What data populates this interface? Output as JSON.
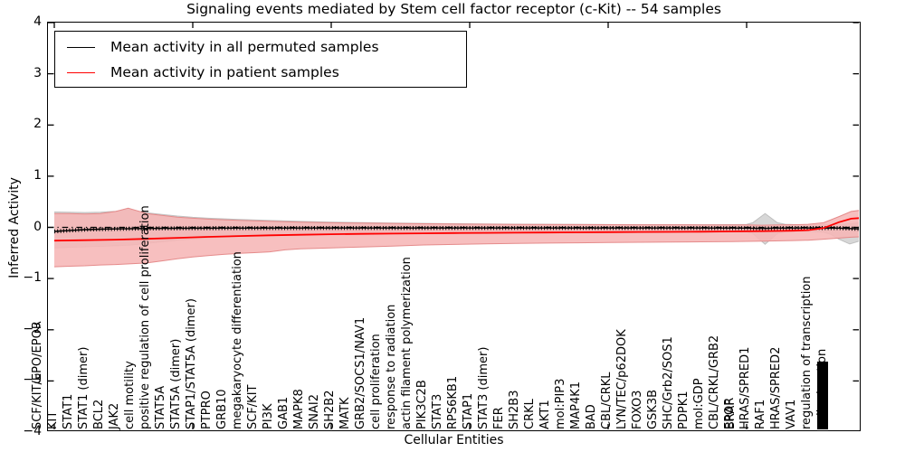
{
  "chart_data": {
    "type": "line",
    "title": "Signaling events mediated by Stem cell factor receptor (c-Kit) -- 54 samples",
    "xlabel": "Cellular Entities",
    "ylabel": "Inferred Activity",
    "ylim": [
      -4,
      4
    ],
    "yticks": [
      "-4",
      "-3",
      "-2",
      "-1",
      "0",
      "1",
      "2",
      "3",
      "4"
    ],
    "grid": false,
    "legend_position": "upper left",
    "legend": [
      {
        "label": "Mean activity in all permuted samples",
        "color": "#000000"
      },
      {
        "label": "Mean activity in patient samples",
        "color": "#ff0000"
      }
    ],
    "x_categories": [
      "SCF/KIT/EPO/EPOR",
      "KIT",
      "STAT1",
      "STAT1 (dimer)",
      "BCL2",
      "JAK2",
      "cell motility",
      "positive regulation of cell proliferation",
      "STAT5A",
      "STAT5A (dimer)",
      "STAP1/STAT5A (dimer)",
      "PTPRO",
      "GRB10",
      "megakaryocyte differentiation",
      "SCF/KIT",
      "PI3K",
      "GAB1",
      "MAPK8",
      "SNAI2",
      "SH2B2",
      "MATK",
      "GRB2/SOCS1/NAV1",
      "cell proliferation",
      "response to radiation",
      "actin filament polymerization",
      "PIK3C2B",
      "STAT3",
      "RPS6KB1",
      "STAP1",
      "STAT3 (dimer)",
      "FER",
      "SH2B3",
      "CRKL",
      "AKT1",
      "mol:PIP3",
      "MAP4K1",
      "BAD",
      "CBL/CRKL",
      "LYN/TEC/p62DOK",
      "FOXO3",
      "GSK3B",
      "SHC/Grb2/SOS1",
      "PDPK1",
      "mol:GDP",
      "CBL/CRKL/GRB2",
      "EPOR",
      "HRAS/SPRED1",
      "RAF1",
      "HRAS/SPRED2",
      "VAV1",
      "regulation of transcription",
      "cell migration"
    ],
    "x_overlapping_extra_labels": [
      {
        "index": 45,
        "label": "BRAF"
      }
    ],
    "x_label_blob": {
      "index": 50,
      "note": "dense cluster of overlapping entity labels"
    },
    "zero_line": {
      "value": 0,
      "style": "dashdot",
      "color": "#000000"
    },
    "series": [
      {
        "name": "Mean activity in all permuted samples",
        "color": "#000000",
        "style": "solid-with-tick-markers",
        "points": [
          [
            0,
            -0.08
          ],
          [
            1,
            -0.06
          ],
          [
            2,
            -0.045
          ],
          [
            3,
            -0.035
          ],
          [
            4,
            -0.03
          ],
          [
            6,
            -0.022
          ],
          [
            8,
            -0.018
          ],
          [
            12,
            -0.015
          ],
          [
            20,
            -0.013
          ],
          [
            30,
            -0.013
          ],
          [
            40,
            -0.012
          ],
          [
            45,
            -0.015
          ],
          [
            46,
            -0.022
          ],
          [
            47,
            -0.015
          ],
          [
            49,
            -0.012
          ],
          [
            51,
            -0.015
          ],
          [
            52.3,
            -0.03
          ]
        ]
      },
      {
        "name": "Mean activity in patient samples",
        "color": "#ff0000",
        "style": "solid",
        "points": [
          [
            0,
            -0.26
          ],
          [
            2,
            -0.25
          ],
          [
            4,
            -0.24
          ],
          [
            6,
            -0.225
          ],
          [
            8,
            -0.205
          ],
          [
            10,
            -0.185
          ],
          [
            12,
            -0.17
          ],
          [
            14,
            -0.155
          ],
          [
            16,
            -0.145
          ],
          [
            18,
            -0.135
          ],
          [
            20,
            -0.128
          ],
          [
            22,
            -0.122
          ],
          [
            24,
            -0.117
          ],
          [
            26,
            -0.112
          ],
          [
            28,
            -0.108
          ],
          [
            30,
            -0.104
          ],
          [
            32,
            -0.1
          ],
          [
            34,
            -0.098
          ],
          [
            36,
            -0.094
          ],
          [
            38,
            -0.09
          ],
          [
            40,
            -0.088
          ],
          [
            42,
            -0.084
          ],
          [
            44,
            -0.08
          ],
          [
            46,
            -0.075
          ],
          [
            47,
            -0.07
          ],
          [
            48,
            -0.065
          ],
          [
            49,
            -0.055
          ],
          [
            50,
            -0.015
          ],
          [
            51,
            0.1
          ],
          [
            51.8,
            0.17
          ],
          [
            52.3,
            0.18
          ]
        ]
      }
    ],
    "bands": [
      {
        "name": "permuted samples band",
        "fill": "#d7d7d7",
        "edge": "#bfbfbf",
        "upper": [
          [
            0,
            0.3
          ],
          [
            2,
            0.29
          ],
          [
            3,
            0.295
          ],
          [
            4,
            0.315
          ],
          [
            4.8,
            0.35
          ],
          [
            5.5,
            0.31
          ],
          [
            6,
            0.285
          ],
          [
            7,
            0.253
          ],
          [
            8,
            0.22
          ],
          [
            9,
            0.196
          ],
          [
            10,
            0.178
          ],
          [
            12,
            0.154
          ],
          [
            14,
            0.134
          ],
          [
            16,
            0.116
          ],
          [
            18,
            0.102
          ],
          [
            20,
            0.092
          ],
          [
            22,
            0.084
          ],
          [
            24,
            0.077
          ],
          [
            26,
            0.071
          ],
          [
            28,
            0.066
          ],
          [
            30,
            0.062
          ],
          [
            34,
            0.057
          ],
          [
            38,
            0.053
          ],
          [
            42,
            0.052
          ],
          [
            44,
            0.053
          ],
          [
            45,
            0.058
          ],
          [
            45.4,
            0.09
          ],
          [
            46.2,
            0.27
          ],
          [
            47,
            0.09
          ],
          [
            47.5,
            0.06
          ],
          [
            48,
            0.055
          ],
          [
            49,
            0.052
          ],
          [
            50,
            0.05
          ],
          [
            51,
            0.055
          ],
          [
            51.8,
            0.07
          ],
          [
            52.3,
            0.09
          ]
        ],
        "lower": [
          [
            0,
            -0.4
          ],
          [
            2,
            -0.38
          ],
          [
            4,
            -0.36
          ],
          [
            5,
            -0.345
          ],
          [
            6,
            -0.315
          ],
          [
            7,
            -0.283
          ],
          [
            8,
            -0.252
          ],
          [
            9,
            -0.228
          ],
          [
            10,
            -0.208
          ],
          [
            12,
            -0.178
          ],
          [
            14,
            -0.156
          ],
          [
            16,
            -0.138
          ],
          [
            18,
            -0.126
          ],
          [
            20,
            -0.117
          ],
          [
            24,
            -0.106
          ],
          [
            28,
            -0.098
          ],
          [
            32,
            -0.092
          ],
          [
            36,
            -0.088
          ],
          [
            40,
            -0.084
          ],
          [
            44,
            -0.08
          ],
          [
            45,
            -0.086
          ],
          [
            45.4,
            -0.12
          ],
          [
            46.2,
            -0.33
          ],
          [
            47,
            -0.12
          ],
          [
            47.5,
            -0.088
          ],
          [
            48,
            -0.082
          ],
          [
            49,
            -0.082
          ],
          [
            50,
            -0.095
          ],
          [
            50.5,
            -0.14
          ],
          [
            51,
            -0.23
          ],
          [
            51.7,
            -0.325
          ],
          [
            52.3,
            -0.27
          ]
        ]
      },
      {
        "name": "patient samples band",
        "fill": "#f6b6b6",
        "edge": "#e58b8b",
        "upper": [
          [
            0,
            0.27
          ],
          [
            1,
            0.268
          ],
          [
            2,
            0.26
          ],
          [
            3,
            0.27
          ],
          [
            4,
            0.31
          ],
          [
            4.8,
            0.375
          ],
          [
            5.5,
            0.315
          ],
          [
            6,
            0.27
          ],
          [
            7,
            0.235
          ],
          [
            8,
            0.2
          ],
          [
            9,
            0.178
          ],
          [
            10,
            0.16
          ],
          [
            11,
            0.148
          ],
          [
            12,
            0.138
          ],
          [
            13,
            0.128
          ],
          [
            14,
            0.118
          ],
          [
            15,
            0.11
          ],
          [
            16,
            0.102
          ],
          [
            18,
            0.09
          ],
          [
            20,
            0.083
          ],
          [
            22,
            0.077
          ],
          [
            24,
            0.071
          ],
          [
            26,
            0.066
          ],
          [
            28,
            0.062
          ],
          [
            30,
            0.059
          ],
          [
            34,
            0.054
          ],
          [
            38,
            0.051
          ],
          [
            42,
            0.05
          ],
          [
            45,
            0.05
          ],
          [
            46,
            0.042
          ],
          [
            47,
            0.047
          ],
          [
            48,
            0.052
          ],
          [
            49,
            0.06
          ],
          [
            50,
            0.09
          ],
          [
            51,
            0.21
          ],
          [
            51.8,
            0.31
          ],
          [
            52.3,
            0.33
          ]
        ],
        "lower": [
          [
            0,
            -0.77
          ],
          [
            1,
            -0.76
          ],
          [
            2,
            -0.75
          ],
          [
            3,
            -0.735
          ],
          [
            4,
            -0.725
          ],
          [
            5,
            -0.71
          ],
          [
            6,
            -0.695
          ],
          [
            7,
            -0.655
          ],
          [
            8,
            -0.615
          ],
          [
            9,
            -0.58
          ],
          [
            10,
            -0.552
          ],
          [
            11,
            -0.528
          ],
          [
            12,
            -0.508
          ],
          [
            13,
            -0.495
          ],
          [
            14,
            -0.478
          ],
          [
            15,
            -0.44
          ],
          [
            16,
            -0.42
          ],
          [
            18,
            -0.4
          ],
          [
            20,
            -0.385
          ],
          [
            22,
            -0.368
          ],
          [
            24,
            -0.345
          ],
          [
            26,
            -0.333
          ],
          [
            28,
            -0.322
          ],
          [
            30,
            -0.313
          ],
          [
            32,
            -0.307
          ],
          [
            34,
            -0.302
          ],
          [
            36,
            -0.297
          ],
          [
            38,
            -0.292
          ],
          [
            40,
            -0.287
          ],
          [
            42,
            -0.283
          ],
          [
            44,
            -0.278
          ],
          [
            46,
            -0.268
          ],
          [
            48,
            -0.258
          ],
          [
            49,
            -0.25
          ],
          [
            50,
            -0.232
          ],
          [
            51,
            -0.21
          ],
          [
            51.8,
            -0.192
          ],
          [
            52.3,
            -0.185
          ]
        ]
      }
    ]
  }
}
